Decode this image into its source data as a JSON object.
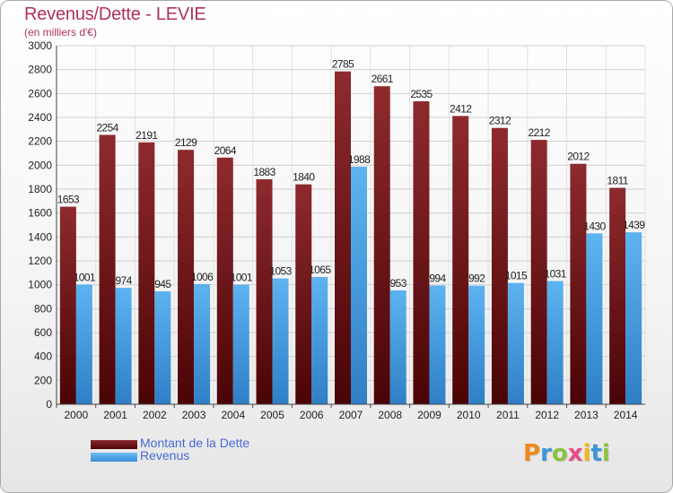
{
  "header": {
    "title": "Revenus/Dette - LEVIE",
    "subtitle": "(en milliers d'€)"
  },
  "colors": {
    "debt": "#7d1a1e",
    "revenue": "#4aa3e6",
    "title": "#b03060",
    "legend_text": "#4a6ad8"
  },
  "legend": [
    {
      "label": "Montant de la Dette",
      "swatch": "debt-swatch"
    },
    {
      "label": "Revenus",
      "swatch": "revenue-swatch"
    }
  ],
  "logo": {
    "text": "Proxiti"
  },
  "chart_data": {
    "type": "bar",
    "categories": [
      "2000",
      "2001",
      "2002",
      "2003",
      "2004",
      "2005",
      "2006",
      "2007",
      "2008",
      "2009",
      "2010",
      "2011",
      "2012",
      "2013",
      "2014"
    ],
    "series": [
      {
        "name": "Montant de la Dette",
        "values": [
          1653,
          2254,
          2191,
          2129,
          2064,
          1883,
          1840,
          2785,
          2661,
          2535,
          2412,
          2312,
          2212,
          2012,
          1811
        ]
      },
      {
        "name": "Revenus",
        "values": [
          1001,
          974,
          945,
          1006,
          1001,
          1053,
          1065,
          1988,
          953,
          994,
          992,
          1015,
          1031,
          1430,
          1439
        ]
      }
    ],
    "ylim": [
      0,
      3000
    ],
    "yticks": [
      0,
      200,
      400,
      600,
      800,
      1000,
      1200,
      1400,
      1600,
      1800,
      2000,
      2200,
      2400,
      2600,
      2800,
      3000
    ],
    "grid": true,
    "legend_position": "bottom-left"
  }
}
